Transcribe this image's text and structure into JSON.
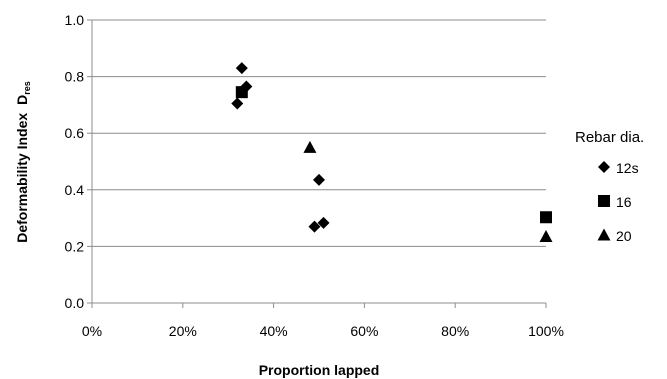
{
  "chart_data": {
    "type": "scatter",
    "xlabel": "Proportion lapped",
    "ylabel": "Deformability Index",
    "ylabel_symbol": "D",
    "ylabel_subscript": "res",
    "xlim": [
      0,
      100
    ],
    "ylim": [
      0.0,
      1.0
    ],
    "x_ticks": [
      "0%",
      "20%",
      "40%",
      "60%",
      "80%",
      "100%"
    ],
    "y_ticks": [
      "0.0",
      "0.2",
      "0.4",
      "0.6",
      "0.8",
      "1.0"
    ],
    "grid": "horizontal",
    "legend_title": "Rebar dia.",
    "legend_position": "right",
    "series": [
      {
        "name": "12s",
        "marker": "diamond",
        "points": [
          {
            "x": 32,
            "y": 0.705
          },
          {
            "x": 33,
            "y": 0.83
          },
          {
            "x": 34,
            "y": 0.765
          },
          {
            "x": 49,
            "y": 0.27
          },
          {
            "x": 50,
            "y": 0.435
          },
          {
            "x": 51,
            "y": 0.283
          }
        ]
      },
      {
        "name": "16",
        "marker": "square",
        "points": [
          {
            "x": 33,
            "y": 0.745
          },
          {
            "x": 100,
            "y": 0.303
          }
        ]
      },
      {
        "name": "20",
        "marker": "triangle",
        "points": [
          {
            "x": 48,
            "y": 0.55
          },
          {
            "x": 100,
            "y": 0.235
          }
        ]
      }
    ]
  }
}
